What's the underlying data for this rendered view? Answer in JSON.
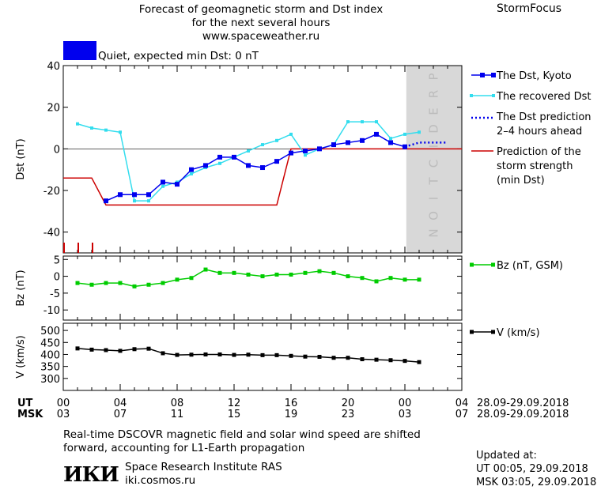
{
  "header": {
    "title_lines": [
      "Forecast of geomagnetic storm and Dst index",
      "for the next several hours",
      "www.spaceweather.ru"
    ],
    "brand": "StormFocus"
  },
  "status": {
    "text": "Quiet, expected min Dst: 0 nT",
    "color": "#0000ee"
  },
  "colors": {
    "dst_kyoto": "#0000ee",
    "dst_recovered": "#33ddee",
    "dst_prediction": "#0000ee",
    "storm_strength": "#cc0000",
    "bz": "#00cc00",
    "velocity": "#000000",
    "prediction_band": "#d8d8d8",
    "prediction_text": "#bcbcbc"
  },
  "chart_data": [
    {
      "type": "line",
      "panel": "dst",
      "ylabel": "Dst (nT)",
      "ylim": [
        -50,
        40
      ],
      "yticks": [
        -40,
        -20,
        0,
        20,
        40
      ],
      "xlim": [
        0,
        28
      ],
      "prediction_band": {
        "label": "PREDICTION",
        "from": 24.1,
        "to": 28
      },
      "series": [
        {
          "name": "The Dst, Kyoto",
          "style": "line-square",
          "x": [
            3,
            4,
            5,
            6,
            7,
            8,
            9,
            10,
            11,
            12,
            13,
            14,
            15,
            16,
            17,
            18,
            19,
            20,
            21,
            22,
            23,
            24
          ],
          "y": [
            -25,
            -22,
            -22,
            -22,
            -16,
            -17,
            -10,
            -8,
            -4,
            -4,
            -8,
            -9,
            -6,
            -2,
            -1,
            0,
            2,
            3,
            4,
            7,
            3,
            1
          ]
        },
        {
          "name": "The recovered Dst",
          "style": "line-small-square",
          "x": [
            1,
            2,
            3,
            4,
            5,
            6,
            7,
            8,
            9,
            10,
            11,
            12,
            13,
            14,
            15,
            16,
            17,
            18,
            19,
            20,
            21,
            22,
            23,
            24,
            25
          ],
          "y": [
            12,
            10,
            9,
            8,
            -25,
            -25,
            -18,
            -16,
            -12,
            -9,
            -7,
            -4,
            -1,
            2,
            4,
            7,
            -3,
            0,
            2,
            13,
            13,
            13,
            5,
            7,
            8
          ]
        },
        {
          "name": "The Dst prediction\n2–4 hours ahead",
          "style": "dotted",
          "x": [
            24,
            25,
            26,
            27
          ],
          "y": [
            1,
            3,
            3,
            3
          ]
        },
        {
          "name": "Prediction of the\nstorm strength\n(min Dst)",
          "style": "step",
          "x": [
            0,
            2,
            3,
            15,
            16,
            28
          ],
          "y": [
            -14,
            -14,
            -27,
            -27,
            0,
            0
          ]
        }
      ],
      "storm_markers_x": [
        0,
        1,
        2
      ]
    },
    {
      "type": "line",
      "panel": "bz",
      "ylabel": "Bz (nT)",
      "ylim": [
        -13,
        6
      ],
      "yticks": [
        5,
        0,
        -5,
        -10
      ],
      "xlim": [
        0,
        28
      ],
      "series": [
        {
          "name": "Bz (nT, GSM)",
          "x": [
            1,
            2,
            3,
            4,
            5,
            6,
            7,
            8,
            9,
            10,
            11,
            12,
            13,
            14,
            15,
            16,
            17,
            18,
            19,
            20,
            21,
            22,
            23,
            24,
            25
          ],
          "y": [
            -2,
            -2.5,
            -2,
            -2,
            -3,
            -2.5,
            -2,
            -1,
            -0.5,
            2,
            1,
            1,
            0.5,
            0,
            0.5,
            0.5,
            1,
            1.5,
            1,
            0,
            -0.5,
            -1.5,
            -0.5,
            -1,
            -1
          ]
        }
      ]
    },
    {
      "type": "line",
      "panel": "velocity",
      "ylabel": "V (km/s)",
      "ylim": [
        250,
        530
      ],
      "yticks": [
        500,
        450,
        400,
        350,
        300
      ],
      "xlim": [
        0,
        28
      ],
      "series": [
        {
          "name": "V (km/s)",
          "x": [
            1,
            2,
            3,
            4,
            5,
            6,
            7,
            8,
            9,
            10,
            11,
            12,
            13,
            14,
            15,
            16,
            17,
            18,
            19,
            20,
            21,
            22,
            23,
            24,
            25
          ],
          "y": [
            425,
            420,
            418,
            415,
            422,
            424,
            405,
            398,
            399,
            400,
            400,
            398,
            399,
            397,
            397,
            394,
            391,
            390,
            386,
            386,
            380,
            378,
            376,
            373,
            368
          ]
        }
      ]
    }
  ],
  "axis": {
    "ut_label": "UT",
    "msk_label": "MSK",
    "ut_ticks": [
      "00",
      "04",
      "08",
      "12",
      "16",
      "20",
      "00",
      "04"
    ],
    "msk_ticks": [
      "03",
      "07",
      "11",
      "15",
      "19",
      "23",
      "03",
      "07"
    ],
    "ut_range": "28.09-29.09.2018",
    "msk_range": "28.09-29.09.2018"
  },
  "footer": {
    "note_lines": [
      "Real-time DSCOVR magnetic field and solar wind speed are shifted",
      "forward, accounting for L1-Earth propagation"
    ],
    "logo_text": "ИКИ",
    "institute_name": "Space Research Institute RAS",
    "institute_url": "iki.cosmos.ru",
    "updated_title": "Updated at:",
    "updated_ut": "UT   00:05, 29.09.2018",
    "updated_msk": "MSK 03:05, 29.09.2018"
  }
}
